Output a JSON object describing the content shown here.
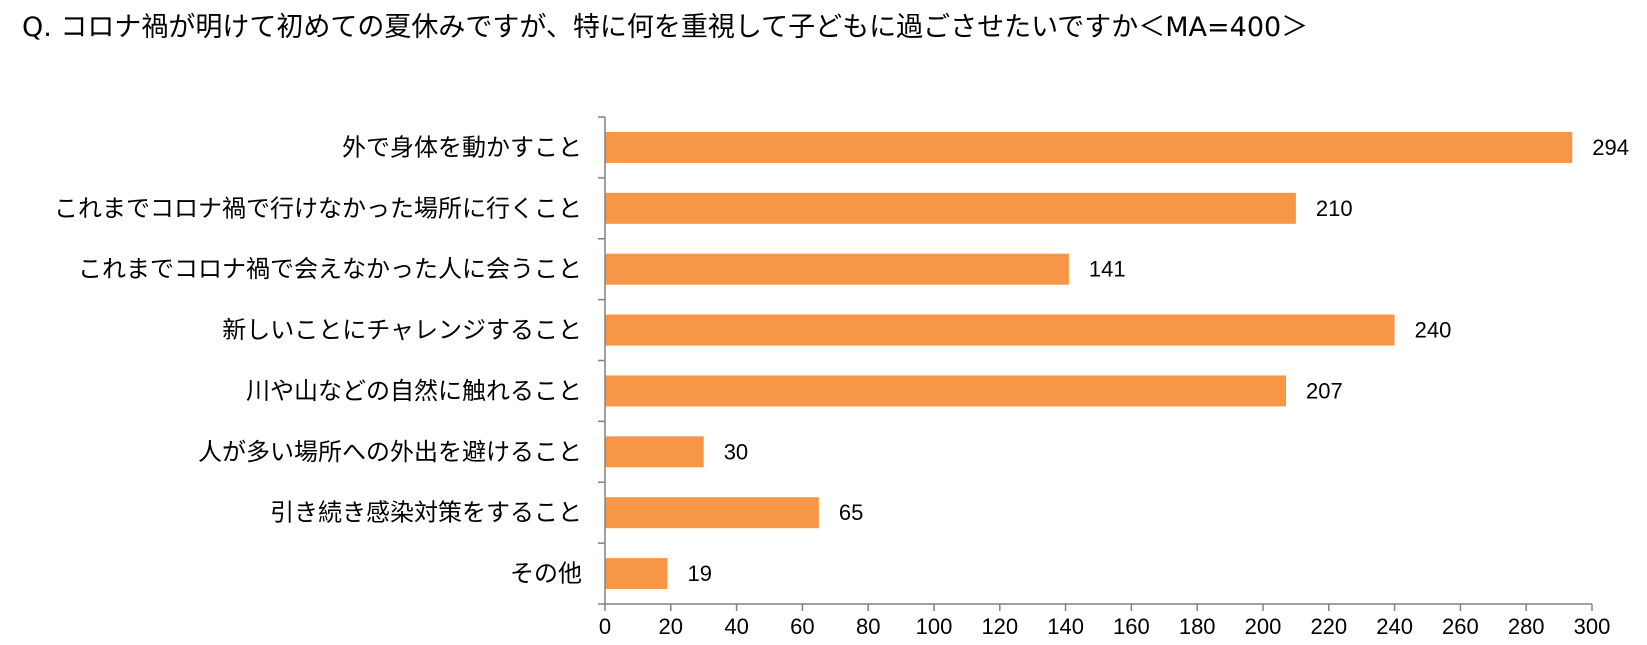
{
  "title": "Q. コロナ禍が明けて初めての夏休みですが、特に何を重視して子どもに過ごさせたいですか＜MA=400＞",
  "chart_data": {
    "type": "bar",
    "orientation": "horizontal",
    "title": "Q. コロナ禍が明けて初めての夏休みですが、特に何を重視して子どもに過ごさせたいですか＜MA=400＞",
    "categories": [
      "外で身体を動かすこと",
      "これまでコロナ禍で行けなかった場所に行くこと",
      "これまでコロナ禍で会えなかった人に会うこと",
      "新しいことにチャレンジすること",
      "川や山などの自然に触れること",
      "人が多い場所への外出を避けること",
      "引き続き感染対策をすること",
      "その他"
    ],
    "values": [
      294,
      210,
      141,
      240,
      207,
      30,
      65,
      19
    ],
    "xlim": [
      0,
      300
    ],
    "xticks": [
      0,
      20,
      40,
      60,
      80,
      100,
      120,
      140,
      160,
      180,
      200,
      220,
      240,
      260,
      280,
      300
    ],
    "grid": false,
    "legend": "none",
    "bar_color": "#F79646",
    "data_labels": true
  }
}
